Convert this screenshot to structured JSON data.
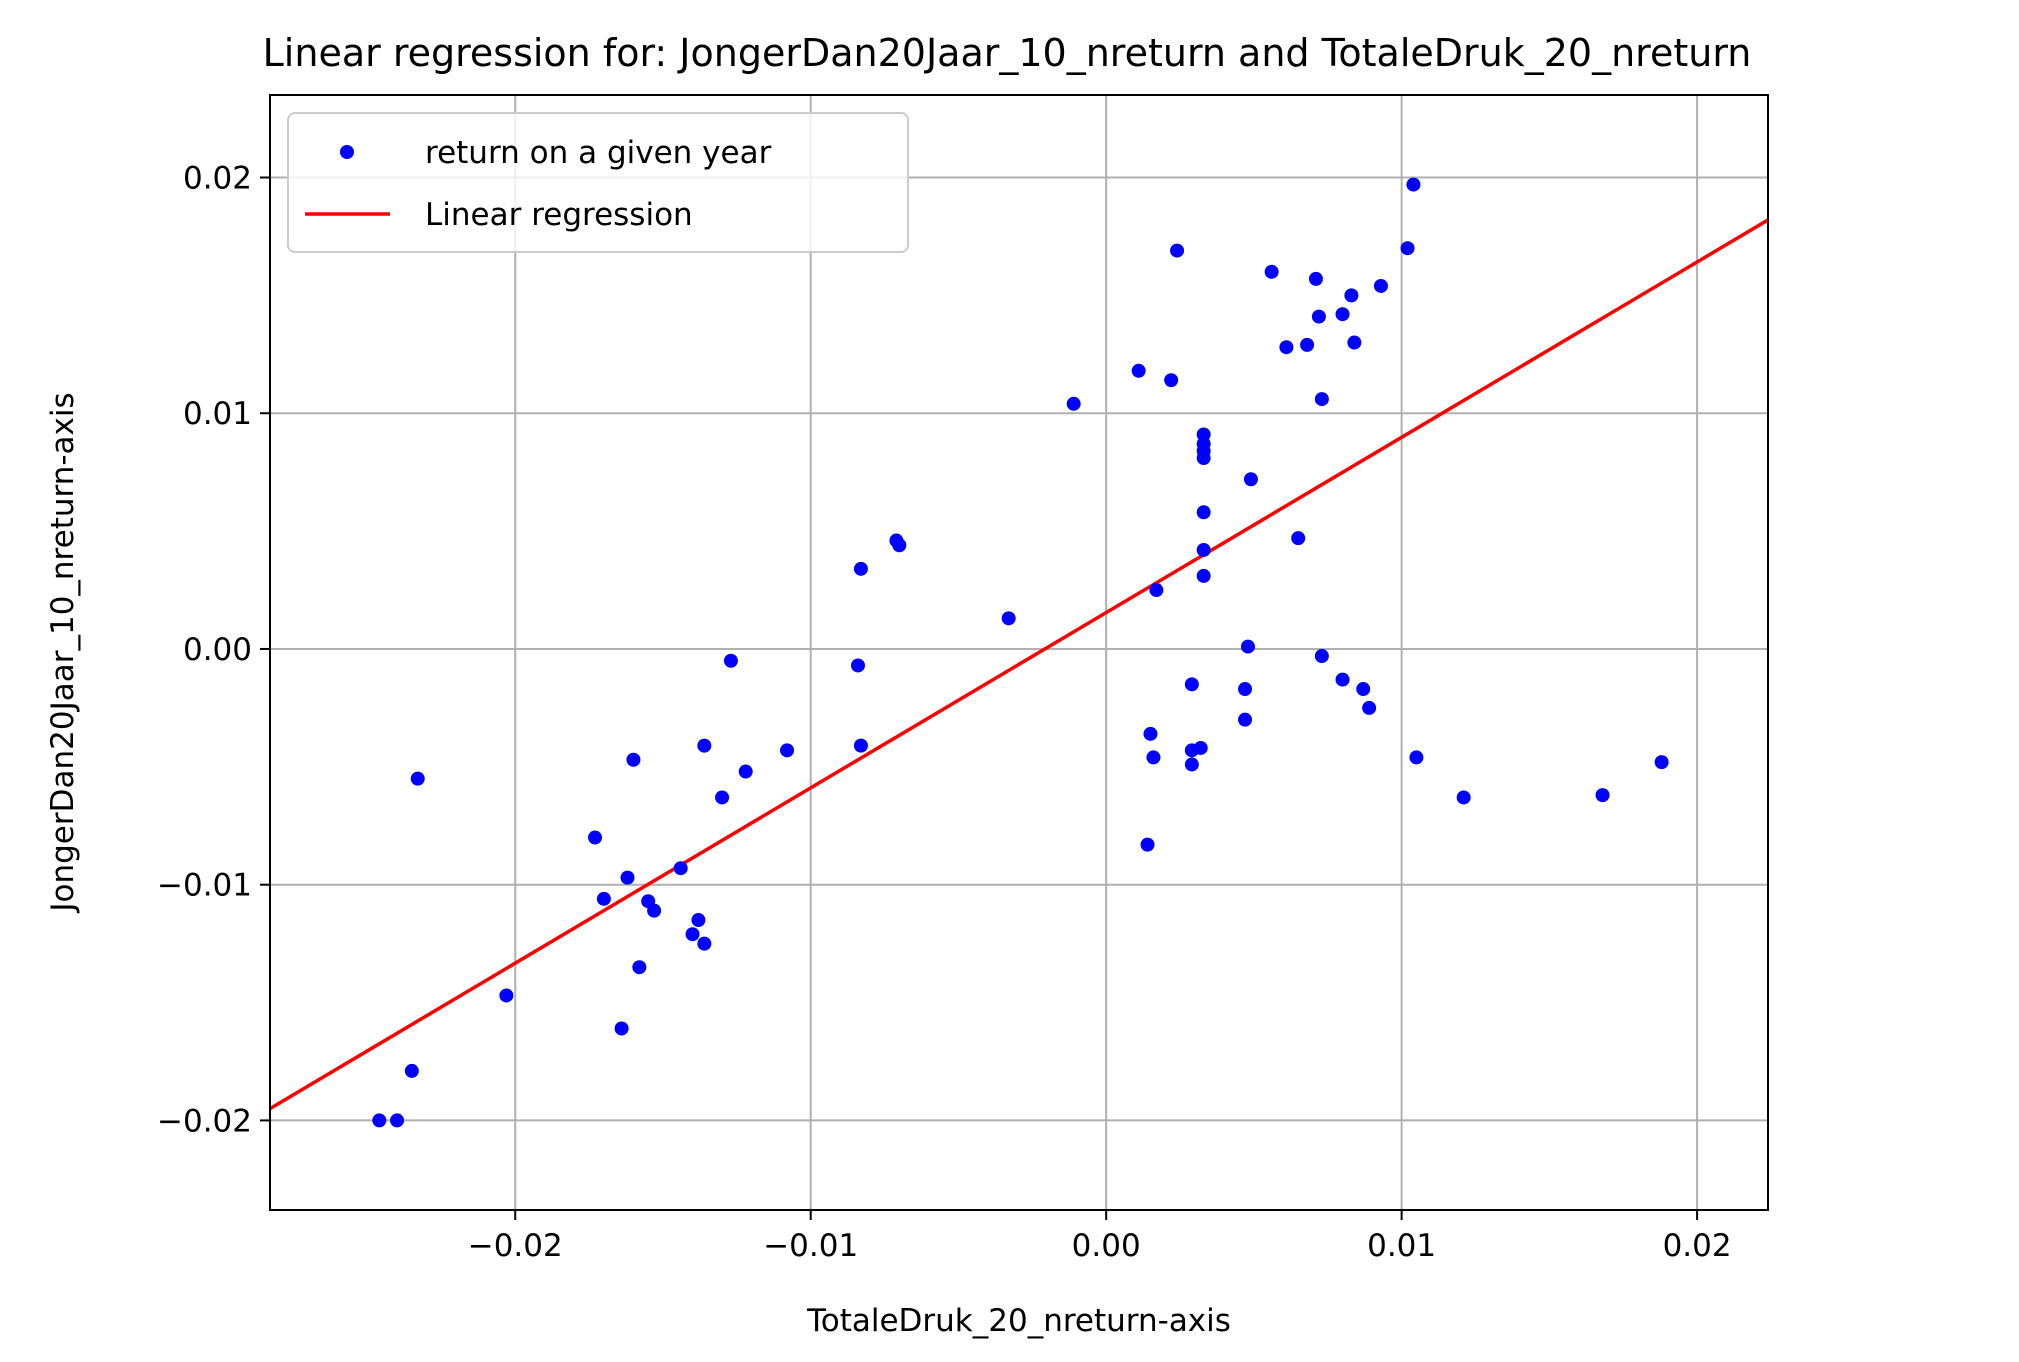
{
  "chart_data": {
    "type": "scatter",
    "title": "Linear regression for: JongerDan20Jaar_10_nreturn and TotaleDruk_20_nreturn",
    "xlabel": "TotaleDruk_20_nreturn-axis",
    "ylabel": "JongerDan20Jaar_10_nreturn-axis",
    "xlim": [
      -0.0283,
      0.0224
    ],
    "ylim": [
      -0.0238,
      0.0235
    ],
    "xticks": [
      -0.02,
      -0.01,
      0.0,
      0.01,
      0.02
    ],
    "xtick_labels": [
      "−0.02",
      "−0.01",
      "0.00",
      "0.01",
      "0.02"
    ],
    "yticks": [
      -0.02,
      -0.01,
      0.0,
      0.01,
      0.02
    ],
    "ytick_labels": [
      "−0.02",
      "−0.01",
      "0.00",
      "0.01",
      "0.02"
    ],
    "grid": true,
    "legend": "upper-left",
    "series": [
      {
        "name": "return on a given year",
        "kind": "scatter",
        "color": "#0000ff",
        "points": [
          [
            -0.0246,
            -0.02
          ],
          [
            -0.024,
            -0.02
          ],
          [
            -0.0235,
            -0.0179
          ],
          [
            -0.0233,
            -0.0055
          ],
          [
            -0.0203,
            -0.0147
          ],
          [
            -0.0173,
            -0.008
          ],
          [
            -0.017,
            -0.0106
          ],
          [
            -0.0164,
            -0.0161
          ],
          [
            -0.0162,
            -0.0097
          ],
          [
            -0.016,
            -0.0047
          ],
          [
            -0.0158,
            -0.0135
          ],
          [
            -0.0155,
            -0.0107
          ],
          [
            -0.0153,
            -0.0111
          ],
          [
            -0.0144,
            -0.0093
          ],
          [
            -0.014,
            -0.0121
          ],
          [
            -0.0138,
            -0.0115
          ],
          [
            -0.0136,
            -0.0125
          ],
          [
            -0.0136,
            -0.0041
          ],
          [
            -0.013,
            -0.0063
          ],
          [
            -0.0127,
            -0.0005
          ],
          [
            -0.0122,
            -0.0052
          ],
          [
            -0.0108,
            -0.0043
          ],
          [
            -0.0084,
            -0.0007
          ],
          [
            -0.0083,
            -0.0041
          ],
          [
            -0.0083,
            0.0034
          ],
          [
            -0.0071,
            0.0046
          ],
          [
            -0.007,
            0.0044
          ],
          [
            -0.0033,
            0.0013
          ],
          [
            -0.0011,
            0.0104
          ],
          [
            0.0011,
            0.0118
          ],
          [
            0.0014,
            -0.0083
          ],
          [
            0.0015,
            -0.0036
          ],
          [
            0.0016,
            -0.0046
          ],
          [
            0.0017,
            0.0025
          ],
          [
            0.0022,
            0.0114
          ],
          [
            0.0024,
            0.0169
          ],
          [
            0.0029,
            -0.0015
          ],
          [
            0.0029,
            -0.0043
          ],
          [
            0.0029,
            -0.0049
          ],
          [
            0.0032,
            -0.0042
          ],
          [
            0.0033,
            0.0031
          ],
          [
            0.0033,
            0.0042
          ],
          [
            0.0033,
            0.0058
          ],
          [
            0.0033,
            0.0081
          ],
          [
            0.0033,
            0.0084
          ],
          [
            0.0033,
            0.0087
          ],
          [
            0.0033,
            0.0091
          ],
          [
            0.0047,
            -0.0017
          ],
          [
            0.0047,
            -0.003
          ],
          [
            0.0048,
            0.0001
          ],
          [
            0.0049,
            0.0072
          ],
          [
            0.0056,
            0.016
          ],
          [
            0.0061,
            0.0128
          ],
          [
            0.0065,
            0.0047
          ],
          [
            0.0068,
            0.0129
          ],
          [
            0.0071,
            0.0157
          ],
          [
            0.0072,
            0.0141
          ],
          [
            0.0073,
            0.0106
          ],
          [
            0.0073,
            -0.0003
          ],
          [
            0.008,
            -0.0013
          ],
          [
            0.008,
            0.0142
          ],
          [
            0.0083,
            0.015
          ],
          [
            0.0084,
            0.013
          ],
          [
            0.0087,
            -0.0017
          ],
          [
            0.0089,
            -0.0025
          ],
          [
            0.0093,
            0.0154
          ],
          [
            0.0102,
            0.017
          ],
          [
            0.0104,
            0.0197
          ],
          [
            0.0105,
            -0.0046
          ],
          [
            0.0121,
            -0.0063
          ],
          [
            0.0168,
            -0.0062
          ],
          [
            0.0188,
            -0.0048
          ]
        ]
      },
      {
        "name": "Linear regression",
        "kind": "line",
        "color": "#ff0000",
        "points": [
          [
            -0.0283,
            -0.0195
          ],
          [
            0.0224,
            0.0182
          ]
        ]
      }
    ]
  }
}
